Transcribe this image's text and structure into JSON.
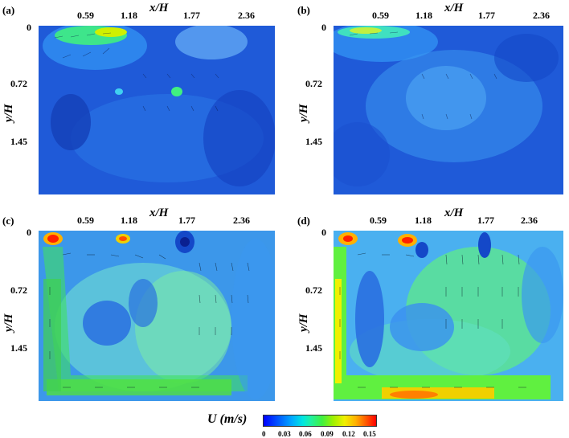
{
  "figure": {
    "panels": [
      {
        "id": "a",
        "label": "(a)"
      },
      {
        "id": "b",
        "label": "(b)"
      },
      {
        "id": "c",
        "label": "(c)"
      },
      {
        "id": "d",
        "label": "(d)"
      }
    ],
    "x_axis_label": "x/H",
    "y_axis_label": "y/H",
    "x_ticks": [
      "0.59",
      "1.18",
      "1.77",
      "2.36"
    ],
    "y_ticks": [
      "0",
      "0.72",
      "1.45"
    ],
    "colorbar": {
      "title": "U (m/s)",
      "ticks": [
        "0",
        "0.03",
        "0.06",
        "0.09",
        "0.12",
        "0.15"
      ],
      "min": 0,
      "max": 0.15
    }
  }
}
